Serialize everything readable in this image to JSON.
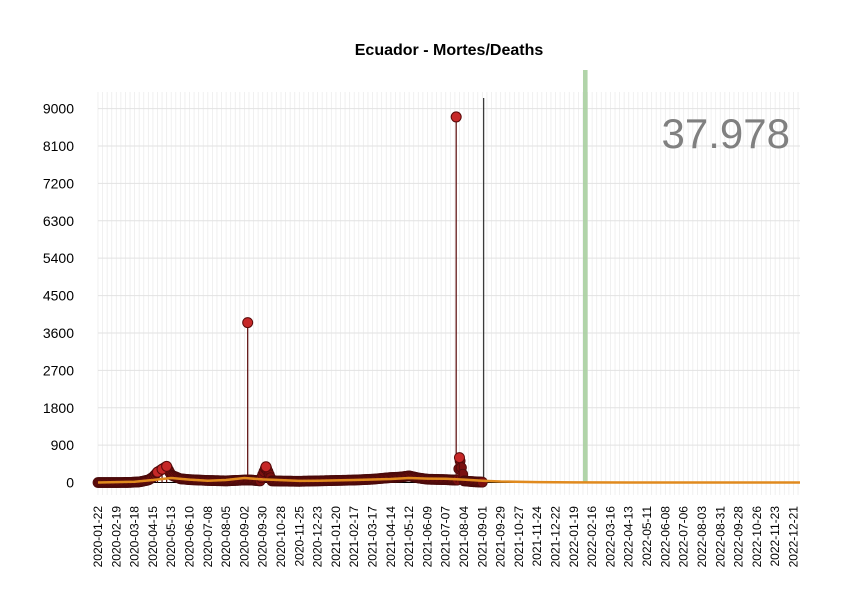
{
  "chart_data": {
    "type": "line",
    "title": "Ecuador - Mortes/Deaths",
    "xlabel": "",
    "ylabel": "",
    "ylim": [
      -300,
      9400
    ],
    "yticks": [
      0,
      900,
      1800,
      2700,
      3600,
      4500,
      5400,
      6300,
      7200,
      8100,
      9000
    ],
    "xrange": [
      "2020-01-22",
      "2022-12-31"
    ],
    "xtick_labels": [
      "2020-01-22",
      "2020-02-19",
      "2020-03-18",
      "2020-04-15",
      "2020-05-13",
      "2020-06-10",
      "2020-07-08",
      "2020-08-05",
      "2020-09-02",
      "2020-09-30",
      "2020-10-28",
      "2020-11-25",
      "2020-12-23",
      "2021-01-20",
      "2021-02-17",
      "2021-03-17",
      "2021-04-14",
      "2021-05-12",
      "2021-06-09",
      "2021-07-07",
      "2021-08-04",
      "2021-09-01",
      "2021-09-29",
      "2021-10-27",
      "2021-11-24",
      "2021-12-22",
      "2022-01-19",
      "2022-02-16",
      "2022-03-16",
      "2022-04-13",
      "2022-05-11",
      "2022-06-08",
      "2022-07-06",
      "2022-08-03",
      "2022-08-31",
      "2022-09-28",
      "2022-10-26",
      "2022-11-23",
      "2022-12-21"
    ],
    "vline_date": "2021-09-03",
    "highlight_band": [
      "2022-02-02",
      "2022-02-09"
    ],
    "big_number": "37.978",
    "series": [
      {
        "kind": "daily",
        "color": "#b71c1c",
        "points": [
          [
            "2020-01-22",
            0
          ],
          [
            "2020-02-15",
            0
          ],
          [
            "2020-03-10",
            3
          ],
          [
            "2020-03-25",
            15
          ],
          [
            "2020-04-08",
            60
          ],
          [
            "2020-04-15",
            130
          ],
          [
            "2020-04-22",
            250
          ],
          [
            "2020-04-29",
            320
          ],
          [
            "2020-05-06",
            390
          ],
          [
            "2020-05-13",
            180
          ],
          [
            "2020-05-27",
            90
          ],
          [
            "2020-06-10",
            70
          ],
          [
            "2020-06-24",
            60
          ],
          [
            "2020-07-08",
            50
          ],
          [
            "2020-07-22",
            45
          ],
          [
            "2020-08-05",
            40
          ],
          [
            "2020-08-19",
            50
          ],
          [
            "2020-09-02",
            60
          ],
          [
            "2020-09-07",
            3850
          ],
          [
            "2020-09-12",
            60
          ],
          [
            "2020-09-26",
            40
          ],
          [
            "2020-10-05",
            380
          ],
          [
            "2020-10-14",
            40
          ],
          [
            "2020-10-28",
            35
          ],
          [
            "2020-11-25",
            30
          ],
          [
            "2020-12-23",
            40
          ],
          [
            "2021-01-20",
            50
          ],
          [
            "2021-02-17",
            60
          ],
          [
            "2021-03-17",
            80
          ],
          [
            "2021-04-14",
            120
          ],
          [
            "2021-04-28",
            130
          ],
          [
            "2021-05-12",
            160
          ],
          [
            "2021-05-26",
            110
          ],
          [
            "2021-06-09",
            80
          ],
          [
            "2021-07-07",
            70
          ],
          [
            "2021-07-20",
            60
          ],
          [
            "2021-07-23",
            8800
          ],
          [
            "2021-07-26",
            60
          ],
          [
            "2021-07-28",
            600
          ],
          [
            "2021-08-04",
            40
          ],
          [
            "2021-08-18",
            20
          ],
          [
            "2021-09-01",
            10
          ]
        ]
      },
      {
        "kind": "trend",
        "color": "#e08a1e",
        "points": [
          [
            "2020-01-22",
            0
          ],
          [
            "2020-03-18",
            20
          ],
          [
            "2020-04-15",
            60
          ],
          [
            "2020-05-13",
            110
          ],
          [
            "2020-06-10",
            70
          ],
          [
            "2020-07-08",
            45
          ],
          [
            "2020-08-05",
            60
          ],
          [
            "2020-09-02",
            110
          ],
          [
            "2020-09-30",
            75
          ],
          [
            "2020-11-25",
            40
          ],
          [
            "2020-12-23",
            45
          ],
          [
            "2021-02-17",
            60
          ],
          [
            "2021-04-14",
            85
          ],
          [
            "2021-05-12",
            110
          ],
          [
            "2021-06-09",
            95
          ],
          [
            "2021-07-07",
            90
          ],
          [
            "2021-08-04",
            70
          ],
          [
            "2021-09-01",
            45
          ],
          [
            "2021-09-29",
            25
          ],
          [
            "2021-11-24",
            10
          ],
          [
            "2022-01-19",
            4
          ],
          [
            "2022-04-13",
            2
          ],
          [
            "2022-12-31",
            1
          ]
        ]
      }
    ]
  }
}
